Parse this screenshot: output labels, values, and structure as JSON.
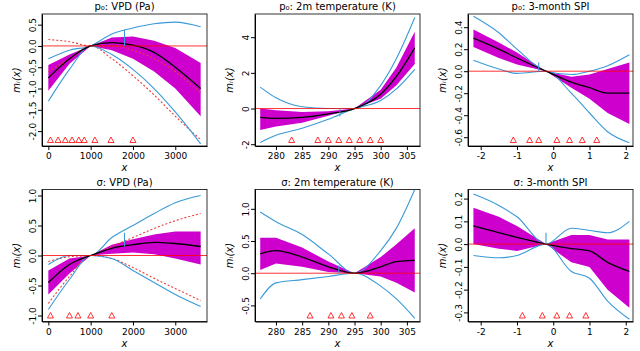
{
  "chart_data": [
    {
      "type": "line",
      "title": "p₀: VPD (Pa)",
      "x_label": "x",
      "y_label": "mᵢ(x)",
      "x": [
        0,
        500,
        1000,
        1500,
        2000,
        2500,
        3000,
        3600
      ],
      "xlim": [
        -150,
        3750
      ],
      "xticks": [
        0,
        1000,
        2000,
        3000
      ],
      "ylim": [
        -2.35,
        0.75
      ],
      "yticks": [
        {
          "value": -2,
          "label": "-2.0"
        },
        {
          "value": -1.5,
          "label": "-1.5"
        },
        {
          "value": -1,
          "label": "-1.0"
        },
        {
          "value": -0.5,
          "label": "-0.5"
        },
        {
          "value": 0,
          "label": "0.0"
        },
        {
          "value": 0.5,
          "label": "0.5"
        }
      ],
      "series": [
        {
          "type": "area",
          "color": "#cd00cd",
          "lower": [
            -1.05,
            -0.42,
            0,
            -0.1,
            -0.3,
            -0.6,
            -1.0,
            -1.65
          ],
          "upper": [
            -0.45,
            -0.2,
            0,
            0.2,
            0.22,
            0.12,
            -0.05,
            -0.4
          ]
        },
        {
          "type": "line",
          "color": "#ee3b3b",
          "line_style": "dotted",
          "values": [
            0.15,
            0.1,
            0,
            0,
            -0.1,
            -0.3,
            -0.6,
            -1.1
          ]
        },
        {
          "type": "line",
          "color": "#ee3b3b",
          "line_style": "dotted",
          "values": [
            -0.6,
            -0.3,
            0,
            -0.3,
            -0.7,
            -1.15,
            -1.65,
            -2.2
          ]
        },
        {
          "type": "line",
          "color": "#3a9ad9",
          "line_style": "solid",
          "values": [
            -0.3,
            -0.1,
            0,
            0.28,
            0.42,
            0.52,
            0.56,
            0.45
          ]
        },
        {
          "type": "line",
          "color": "#3a9ad9",
          "line_style": "solid",
          "values": [
            -1.3,
            -0.55,
            0,
            -0.2,
            -0.55,
            -1.0,
            -1.55,
            -2.3
          ]
        },
        {
          "type": "line",
          "color": "#000000",
          "line_style": "solid",
          "values": [
            -0.75,
            -0.3,
            0,
            0.08,
            0.02,
            -0.15,
            -0.5,
            -1.0
          ]
        }
      ],
      "reference_line": 0,
      "segment": {
        "x": 1800,
        "y": [
          0,
          0.38
        ],
        "color": "#3a9ad9"
      },
      "rug": {
        "values": [
          50,
          230,
          400,
          560,
          720,
          850,
          1100,
          1480,
          2000
        ],
        "color": "#ff0000",
        "marker": "triangle"
      }
    },
    {
      "type": "line",
      "title": "p₀: 2m temperature (K)",
      "x_label": "x",
      "y_label": "mᵢ(x)",
      "x": [
        277,
        280,
        285,
        290,
        295,
        300,
        303,
        306.5
      ],
      "xlim": [
        276,
        307.5
      ],
      "xticks": [
        280,
        285,
        290,
        295,
        300,
        305
      ],
      "ylim": [
        -2.1,
        5.3
      ],
      "yticks": [
        -2,
        0,
        2,
        4
      ],
      "series": [
        {
          "type": "area",
          "color": "#cd00cd",
          "lower": [
            -1.2,
            -1.0,
            -0.8,
            -0.4,
            0,
            0.55,
            1.3,
            2.5
          ],
          "upper": [
            0,
            -0.1,
            -0.2,
            -0.15,
            0,
            1.05,
            2.3,
            4.3
          ]
        },
        {
          "type": "line",
          "color": "#3a9ad9",
          "line_style": "solid",
          "values": [
            1.2,
            0.6,
            0.1,
            0,
            0,
            1.3,
            2.8,
            5.1
          ]
        },
        {
          "type": "line",
          "color": "#3a9ad9",
          "line_style": "solid",
          "values": [
            -1.9,
            -1.5,
            -1.1,
            -0.6,
            0,
            0.45,
            1.1,
            2.2
          ]
        },
        {
          "type": "line",
          "color": "#000000",
          "line_style": "solid",
          "values": [
            -0.5,
            -0.55,
            -0.5,
            -0.3,
            0,
            0.8,
            1.8,
            3.4
          ]
        }
      ],
      "reference_line": 0,
      "segment": {
        "x": 292.2,
        "y": [
          -0.45,
          0
        ],
        "color": "#3a9ad9"
      },
      "rug": {
        "values": [
          283,
          288,
          290,
          292,
          294,
          296,
          298,
          300
        ],
        "color": "#ff0000",
        "marker": "triangle"
      }
    },
    {
      "type": "line",
      "title": "p₀: 3-month SPI",
      "x_label": "x",
      "y_label": "mᵢ(x)",
      "x": [
        -2.2,
        -1.5,
        -1,
        -0.2,
        0.5,
        1,
        1.5,
        2.1
      ],
      "xlim": [
        -2.35,
        2.2
      ],
      "xticks": [
        -2,
        -1,
        0,
        1,
        2
      ],
      "ylim": [
        -0.68,
        0.52
      ],
      "yticks": [
        {
          "value": -0.6,
          "label": "-0.6"
        },
        {
          "value": -0.4,
          "label": "-0.4"
        },
        {
          "value": -0.2,
          "label": "-0.2"
        },
        {
          "value": 0,
          "label": "0.0"
        },
        {
          "value": 0.2,
          "label": "0.2"
        },
        {
          "value": 0.4,
          "label": "0.4"
        }
      ],
      "series": [
        {
          "type": "area",
          "color": "#cd00cd",
          "lower": [
            0.22,
            0.12,
            0.06,
            0,
            -0.15,
            -0.25,
            -0.38,
            -0.48
          ],
          "upper": [
            0.38,
            0.26,
            0.17,
            0,
            -0.05,
            -0.03,
            0.02,
            0.08
          ]
        },
        {
          "type": "line",
          "color": "#3a9ad9",
          "line_style": "solid",
          "values": [
            0.5,
            0.35,
            0.2,
            0,
            -0.03,
            0,
            0.05,
            0.15
          ]
        },
        {
          "type": "line",
          "color": "#3a9ad9",
          "line_style": "solid",
          "values": [
            0.1,
            0.02,
            -0.02,
            0,
            -0.2,
            -0.38,
            -0.55,
            -0.65
          ]
        },
        {
          "type": "line",
          "color": "#000000",
          "line_style": "solid",
          "values": [
            0.3,
            0.2,
            0.12,
            0,
            -0.1,
            -0.15,
            -0.2,
            -0.2
          ]
        }
      ],
      "reference_line": 0,
      "segment": {
        "x": -0.4,
        "y": [
          0,
          0.08
        ],
        "color": "#3a9ad9"
      },
      "rug": {
        "values": [
          -1.1,
          -0.65,
          -0.4,
          0.1,
          0.45,
          0.8,
          1.2
        ],
        "color": "#ff0000",
        "marker": "triangle"
      }
    },
    {
      "type": "line",
      "title": "σ: VPD (Pa)",
      "x_label": "x",
      "y_label": "mᵢ(x)",
      "x": [
        0,
        500,
        1000,
        1500,
        2000,
        2500,
        3000,
        3600
      ],
      "xlim": [
        -150,
        3750
      ],
      "xticks": [
        0,
        1000,
        2000,
        3000
      ],
      "ylim": [
        -1.1,
        1.1
      ],
      "yticks": [
        {
          "value": -1,
          "label": "-1.0"
        },
        {
          "value": -0.5,
          "label": "-0.5"
        },
        {
          "value": 0,
          "label": "0.0"
        },
        {
          "value": 0.5,
          "label": "0.5"
        },
        {
          "value": 1,
          "label": "1.0"
        }
      ],
      "series": [
        {
          "type": "area",
          "color": "#cd00cd",
          "lower": [
            -0.65,
            -0.3,
            0,
            0.03,
            0.05,
            0.02,
            -0.05,
            -0.15
          ],
          "upper": [
            -0.25,
            -0.05,
            0,
            0.18,
            0.27,
            0.35,
            0.4,
            0.4
          ]
        },
        {
          "type": "line",
          "color": "#ee3b3b",
          "line_style": "dotted",
          "values": [
            -0.1,
            -0.02,
            0,
            0.15,
            0.3,
            0.45,
            0.58,
            0.7
          ]
        },
        {
          "type": "line",
          "color": "#ee3b3b",
          "line_style": "dotted",
          "values": [
            -0.8,
            -0.35,
            0,
            -0.05,
            -0.2,
            -0.38,
            -0.55,
            -0.75
          ]
        },
        {
          "type": "line",
          "color": "#3a9ad9",
          "line_style": "solid",
          "values": [
            -0.15,
            0,
            0,
            0.3,
            0.5,
            0.7,
            0.88,
            1.0
          ]
        },
        {
          "type": "line",
          "color": "#3a9ad9",
          "line_style": "solid",
          "values": [
            -0.9,
            -0.4,
            0,
            -0.05,
            -0.25,
            -0.45,
            -0.65,
            -0.85
          ]
        },
        {
          "type": "line",
          "color": "#000000",
          "line_style": "solid",
          "values": [
            -0.45,
            -0.15,
            0,
            0.12,
            0.18,
            0.22,
            0.2,
            0.15
          ]
        }
      ],
      "reference_line": 0,
      "segment": {
        "x": 1800,
        "y": [
          0.15,
          0.38
        ],
        "color": "#3a9ad9"
      },
      "rug": {
        "values": [
          50,
          500,
          700,
          1000,
          1500
        ],
        "color": "#ff0000",
        "marker": "triangle"
      }
    },
    {
      "type": "line",
      "title": "σ: 2m temperature (K)",
      "x_label": "x",
      "y_label": "mᵢ(x)",
      "x": [
        277,
        280,
        285,
        290,
        295,
        300,
        303,
        306.5
      ],
      "xlim": [
        276,
        307.5
      ],
      "xticks": [
        280,
        285,
        290,
        295,
        300,
        305
      ],
      "ylim": [
        -0.75,
        1.3
      ],
      "yticks": [
        {
          "value": -0.5,
          "label": "-0.5"
        },
        {
          "value": 0,
          "label": "0.0"
        },
        {
          "value": 0.5,
          "label": "0.5"
        },
        {
          "value": 1,
          "label": "1.0"
        }
      ],
      "series": [
        {
          "type": "area",
          "color": "#cd00cd",
          "lower": [
            0.05,
            0.15,
            0.1,
            0.02,
            0,
            -0.05,
            -0.15,
            -0.3
          ],
          "upper": [
            0.55,
            0.55,
            0.4,
            0.18,
            0,
            0.25,
            0.45,
            0.7
          ]
        },
        {
          "type": "line",
          "color": "#3a9ad9",
          "line_style": "solid",
          "values": [
            0.95,
            0.8,
            0.6,
            0.3,
            0,
            0.35,
            0.7,
            1.3
          ]
        },
        {
          "type": "line",
          "color": "#3a9ad9",
          "line_style": "solid",
          "values": [
            -0.4,
            -0.15,
            -0.1,
            -0.05,
            0,
            -0.2,
            -0.4,
            -0.7
          ]
        },
        {
          "type": "line",
          "color": "#000000",
          "line_style": "solid",
          "values": [
            0.3,
            0.35,
            0.25,
            0.1,
            0,
            0.1,
            0.18,
            0.2
          ]
        }
      ],
      "reference_line": 0,
      "segment": {
        "x": 292,
        "y": [
          0,
          0.12
        ],
        "color": "#3a9ad9"
      },
      "rug": {
        "values": [
          286.5,
          290.5,
          292.5,
          294.5,
          298
        ],
        "color": "#ff0000",
        "marker": "triangle"
      }
    },
    {
      "type": "line",
      "title": "σ: 3-month SPI",
      "x_label": "x",
      "y_label": "mᵢ(x)",
      "x": [
        -2.2,
        -1.5,
        -1,
        -0.2,
        0.5,
        1,
        1.5,
        2.1
      ],
      "xlim": [
        -2.35,
        2.2
      ],
      "xticks": [
        -2,
        -1,
        0,
        1,
        2
      ],
      "ylim": [
        -0.34,
        0.24
      ],
      "yticks": [
        {
          "value": -0.3,
          "label": "-0.3"
        },
        {
          "value": -0.2,
          "label": "-0.2"
        },
        {
          "value": -0.1,
          "label": "-0.1"
        },
        {
          "value": 0,
          "label": "0.0"
        },
        {
          "value": 0.1,
          "label": "0.1"
        },
        {
          "value": 0.2,
          "label": "0.2"
        }
      ],
      "series": [
        {
          "type": "area",
          "color": "#cd00cd",
          "lower": [
            0,
            -0.02,
            -0.03,
            0,
            -0.08,
            -0.1,
            -0.2,
            -0.28
          ],
          "upper": [
            0.16,
            0.12,
            0.08,
            0,
            0.04,
            0.04,
            0.02,
            0.02
          ]
        },
        {
          "type": "line",
          "color": "#3a9ad9",
          "line_style": "solid",
          "values": [
            0.22,
            0.17,
            0.12,
            0,
            0.07,
            0.06,
            0.05,
            0.1
          ]
        },
        {
          "type": "line",
          "color": "#3a9ad9",
          "line_style": "solid",
          "values": [
            -0.05,
            -0.06,
            -0.05,
            0,
            -0.12,
            -0.15,
            -0.25,
            -0.33
          ]
        },
        {
          "type": "line",
          "color": "#000000",
          "line_style": "solid",
          "values": [
            0.08,
            0.05,
            0.03,
            0,
            -0.02,
            -0.03,
            -0.08,
            -0.12
          ]
        }
      ],
      "reference_line": 0,
      "segment": {
        "x": -0.2,
        "y": [
          0,
          0.05
        ],
        "color": "#3a9ad9"
      },
      "rug": {
        "values": [
          -0.85,
          -0.3,
          0.1,
          0.45,
          0.9
        ],
        "color": "#ff0000",
        "marker": "triangle"
      }
    }
  ]
}
